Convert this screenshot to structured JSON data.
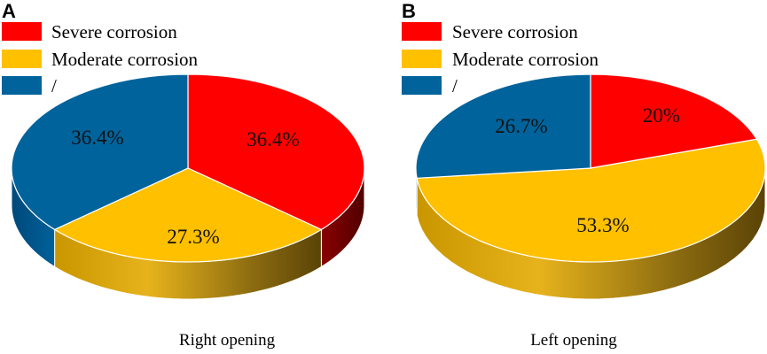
{
  "chart_data": [
    {
      "type": "pie",
      "panel": "A",
      "caption": "Right opening",
      "categories": [
        "Severe corrosion",
        "Moderate corrosion",
        "/"
      ],
      "values": [
        36.4,
        27.3,
        36.4
      ],
      "labels": [
        "36.4%",
        "27.3%",
        "36.4%"
      ],
      "colors": [
        "#ff0000",
        "#ffc000",
        "#00639c"
      ],
      "legend_position": "top-left",
      "style": "3d"
    },
    {
      "type": "pie",
      "panel": "B",
      "caption": "Left opening",
      "categories": [
        "Severe corrosion",
        "Moderate corrosion",
        "/"
      ],
      "values": [
        20,
        53.3,
        26.7
      ],
      "labels": [
        "20%",
        "53.3%",
        "26.7%"
      ],
      "colors": [
        "#ff0000",
        "#ffc000",
        "#00639c"
      ],
      "legend_position": "top-left",
      "style": "3d"
    }
  ]
}
